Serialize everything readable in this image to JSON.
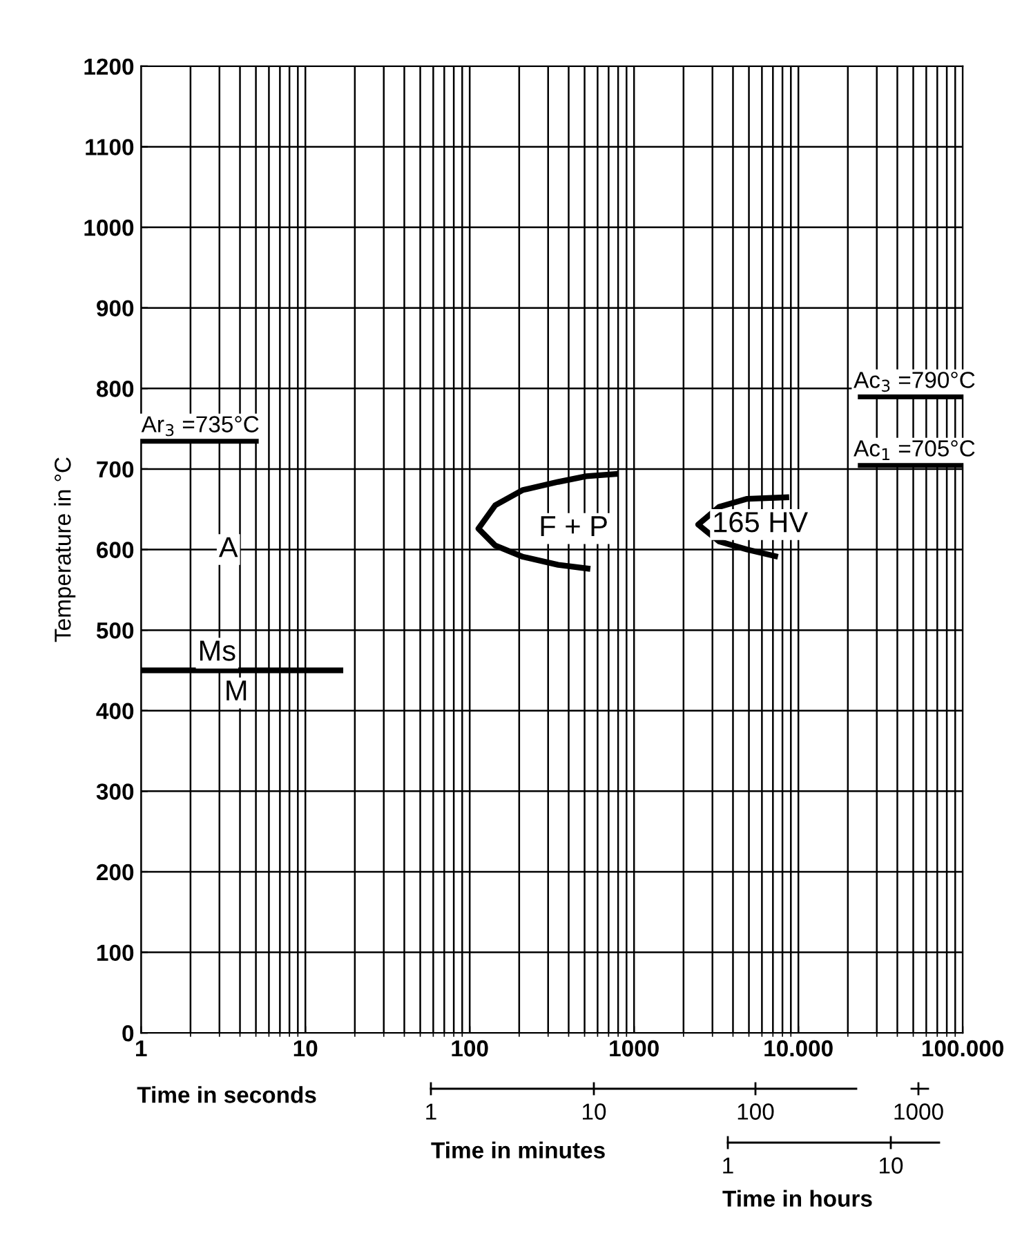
{
  "chart_data": [
    {
      "type": "line",
      "xlabel": "Time in seconds",
      "ylabel": "Temperature in °C",
      "log": "x",
      "xlim": [
        1,
        100000
      ],
      "xticks": [
        1,
        10,
        100,
        1000,
        {
          "value": 10000,
          "label": "10.000"
        },
        {
          "value": 100000,
          "label": "100.000"
        }
      ],
      "ylim": [
        0,
        1200
      ],
      "yticks": [
        0,
        100,
        200,
        300,
        400,
        500,
        600,
        700,
        800,
        900,
        1000,
        1100,
        1200
      ],
      "grid": true,
      "marker": "none",
      "line_style": "solid",
      "series": [
        {
          "color": "#000000",
          "x": [
            542,
            345,
            211,
            143,
            113,
            143,
            211,
            345,
            512,
            803
          ],
          "values": [
            576,
            581,
            591,
            605,
            626,
            655,
            674,
            684,
            691,
            694
          ]
        },
        {
          "color": "#000000",
          "x": [
            7510,
            4880,
            3296,
            2455,
            3296,
            4880,
            8790
          ],
          "values": [
            591,
            600,
            610,
            631,
            653,
            663,
            665
          ]
        },
        {
          "color": "#000000",
          "x": [
            1,
            17
          ],
          "values": [
            450,
            450
          ]
        },
        {
          "color": "#000000",
          "x": [
            1,
            5.2
          ],
          "values": [
            735,
            735
          ]
        },
        {
          "color": "#000000",
          "x": [
            23000,
            100000
          ],
          "values": [
            790,
            790
          ]
        },
        {
          "color": "#000000",
          "x": [
            23000,
            100000
          ],
          "values": [
            705,
            705
          ]
        }
      ],
      "annotations": [
        "F + P",
        "165 HV",
        {
          "text": "Ar$_{3}$ =735°C",
          "x": 2.3,
          "y": 735
        },
        {
          "text": "Ac$_{3}$ =790°C",
          "x": 51000,
          "y": 790
        },
        {
          "text": "Ac$_{1}$ =705°C",
          "x": 51000,
          "y": 705
        },
        {
          "text": "A",
          "x": 3.4,
          "y": 600
        },
        {
          "text": "Ms",
          "x": 2.9,
          "y": 450
        },
        {
          "text": "M",
          "x": 3.8,
          "y": 422
        }
      ]
    },
    {
      "type": "other",
      "annotations": [
        "1",
        "10",
        "100",
        "1000",
        "Time in minutes",
        "1",
        "10",
        "Time in hours"
      ]
    }
  ]
}
